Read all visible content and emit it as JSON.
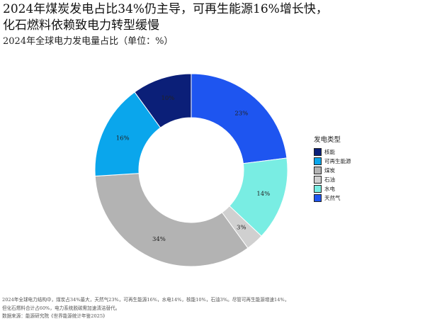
{
  "title_lines": [
    "2024年煤炭发电占比34%仍主导，可再生能源16%增长快，",
    "化石燃料依赖致电力转型缓慢"
  ],
  "subtitle": "2024年全球电力发电量占比（单位：%）",
  "legend_title": "发电类型",
  "chart_data": {
    "type": "pie",
    "donut": true,
    "title": "2024年全球电力发电量占比（单位：%）",
    "unit": "%",
    "start_angle_deg": 0,
    "direction": "clockwise_from_top",
    "slice_order": [
      "天然气",
      "水电",
      "石油",
      "煤炭",
      "可再生能源",
      "核能"
    ],
    "labels": [
      "核能",
      "可再生能源",
      "煤炭",
      "石油",
      "水电",
      "天然气"
    ],
    "values": [
      10,
      16,
      34,
      3,
      14,
      23
    ],
    "value_labels": [
      "10%",
      "16%",
      "34%",
      "3%",
      "14%",
      "23%"
    ],
    "colors": [
      "#0b1f78",
      "#0aa6ec",
      "#b3b3b3",
      "#d0d0d0",
      "#79ede3",
      "#1e55f0"
    ],
    "legend_position": "right"
  },
  "footnote_lines": [
    "2024年全球电力结构中，煤炭占34%最大，天然气23%，可再生能源16%，水电14%，核能10%，石油3%。尽管可再生能源增速14%，",
    "但化石燃料合计占60%，电力系统脱碳需加速清洁替代。",
    "数据来源：能源研究院《世界能源统计年鉴2025》"
  ]
}
